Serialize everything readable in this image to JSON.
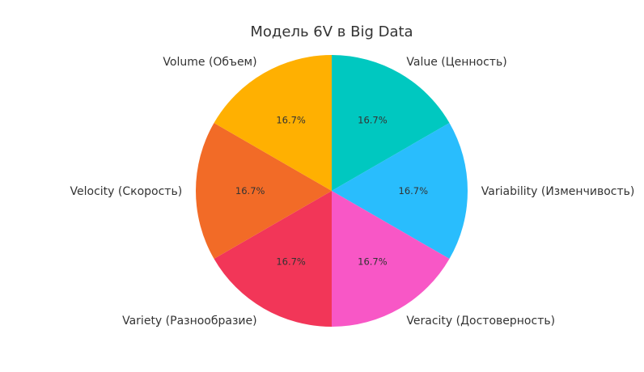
{
  "chart_data": {
    "type": "pie",
    "title": "Модель 6V в Big Data",
    "categories": [
      "Value (Ценность)",
      "Variability (Изменчивость)",
      "Veracity (Достоверность)",
      "Variety (Разнообразие)",
      "Velocity (Скорость)",
      "Volume (Объем)"
    ],
    "values": [
      16.7,
      16.7,
      16.7,
      16.7,
      16.7,
      16.7
    ],
    "value_labels": [
      "16.7%",
      "16.7%",
      "16.7%",
      "16.7%",
      "16.7%",
      "16.7%"
    ],
    "colors": [
      "#00c8c0",
      "#29bdfd",
      "#f857c6",
      "#f23658",
      "#f26b27",
      "#ffb001"
    ],
    "start_angle_deg": 90,
    "direction": "clockwise"
  }
}
